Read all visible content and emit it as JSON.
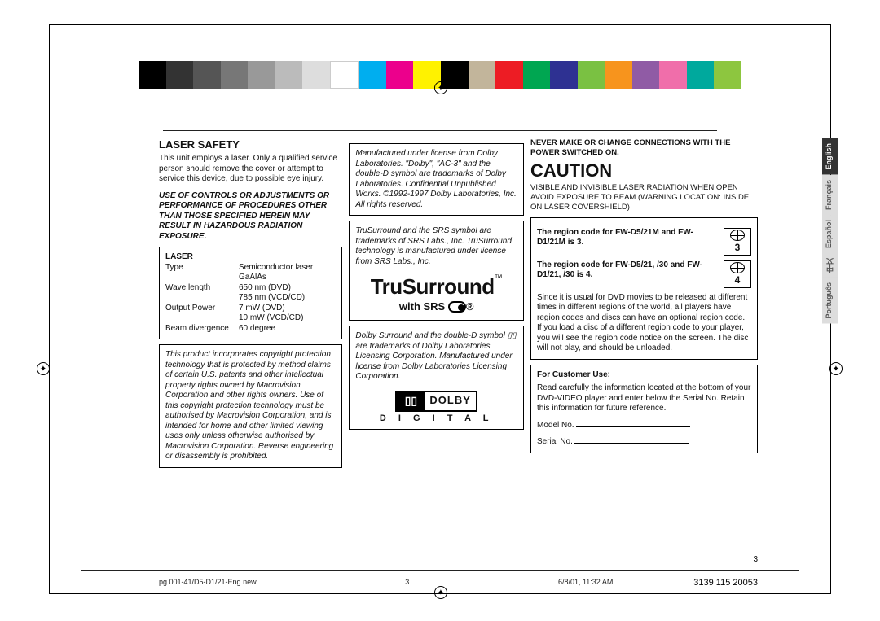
{
  "colorbar": [
    "#000000",
    "#333333",
    "#555555",
    "#777777",
    "#999999",
    "#bbbbbb",
    "#dddddd",
    "#ffffff",
    "#00aeef",
    "#ec008c",
    "#fff200",
    "#000000",
    "#c2b59b",
    "#ed1c24",
    "#00a651",
    "#2e3192",
    "#7ac142",
    "#f7941d",
    "#905ba5",
    "#f06eaa",
    "#00a99d",
    "#8dc63f"
  ],
  "col1": {
    "heading": "LASER SAFETY",
    "intro": "This unit employs a laser. Only a qualified service person should remove the cover or attempt to service this device, due to possible eye injury.",
    "warn": "USE OF CONTROLS OR ADJUSTMENTS OR PERFORMANCE OF PROCEDURES OTHER THAN THOSE SPECIFIED HEREIN MAY RESULT IN HAZARDOUS RADIATION EXPOSURE.",
    "laser_label": "LASER",
    "specs": [
      {
        "k": "Type",
        "v": "Semiconductor laser GaAlAs"
      },
      {
        "k": "Wave length",
        "v": "650 nm (DVD)"
      },
      {
        "k": "",
        "v": "785 nm (VCD/CD)"
      },
      {
        "k": "Output Power",
        "v": "7 mW (DVD)"
      },
      {
        "k": "",
        "v": "10 mW (VCD/CD)"
      },
      {
        "k": "Beam divergence",
        "v": "60 degree"
      }
    ],
    "macro": "This product incorporates copyright protection technology that is protected by method claims of certain U.S. patents and other intellectual property rights owned by Macrovision Corporation and other rights owners. Use of this copyright protection technology must be authorised by Macrovision Corporation, and is intended for home and other limited viewing uses only unless otherwise authorised by Macrovision Corporation. Reverse engineering or disassembly is prohibited."
  },
  "col2": {
    "dolby1": "Manufactured under license from Dolby Laboratories. \"Dolby\", \"AC-3\" and the double-D symbol are trademarks of Dolby Laboratories. Confidential Unpublished Works. ©1992-1997 Dolby Laboratories, Inc. All rights reserved.",
    "srs": "TruSurround and the SRS symbol are trademarks of SRS Labs., Inc. TruSurround technology is manufactured under license from SRS Labs., Inc.",
    "tru_main": "TruSurround",
    "tru_tm": "™",
    "with": "with ",
    "srs_txt": "SRS",
    "reg": "®",
    "dolby2": "Dolby Surround and the double-D symbol ▯▯ are trademarks of Dolby Laboratories Licensing Corporation. Manufactured under license from Dolby Laboratories Licensing Corporation.",
    "dolby_word": "DOLBY",
    "dolby_sub": "D I G I T A L"
  },
  "col3": {
    "never": "NEVER MAKE OR CHANGE CONNECTIONS WITH THE POWER SWITCHED ON.",
    "caution": "CAUTION",
    "caution_body": "VISIBLE AND INVISIBLE LASER RADIATION WHEN OPEN AVOID EXPOSURE TO BEAM (WARNING LOCATION: INSIDE ON LASER COVERSHIELD)",
    "region1_txt": "The region code for FW-D5/21M and FW-D1/21M is 3.",
    "region1_num": "3",
    "region2_txt": "The region code for FW-D5/21, /30 and FW-D1/21, /30 is 4.",
    "region2_num": "4",
    "region_body": "Since it is usual for DVD movies to be released at different times in different regions of the world, all players have region codes and discs can have an optional region code. If you load a disc of a different region code to your player, you will see the region code notice on the screen. The disc will not play, and should be unloaded.",
    "cust_h": "For Customer Use:",
    "cust_body": "Read carefully the information located at the bottom of your DVD-VIDEO player and enter below the Serial No. Retain this information for future reference.",
    "model": "Model No.",
    "serial": "Serial No."
  },
  "langs": [
    "English",
    "Français",
    "Español",
    "中文",
    "Português"
  ],
  "footer": {
    "left": "pg 001-41/D5-D1/21-Eng new",
    "mid_page": "3",
    "date": "6/8/01, 11:32 AM",
    "page_num": "3",
    "part": "3139 115 20053"
  }
}
